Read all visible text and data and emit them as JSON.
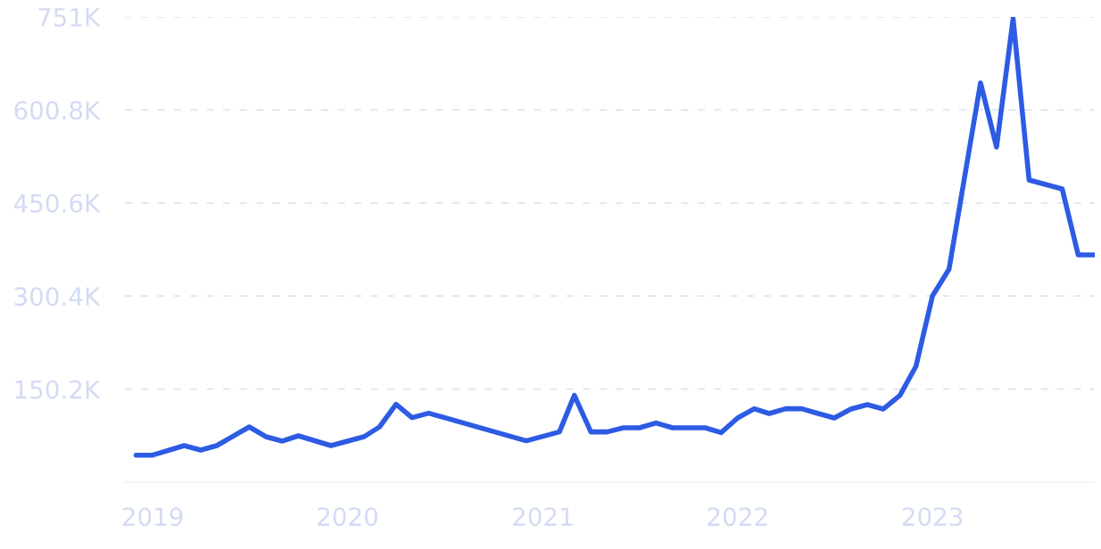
{
  "chart_data": {
    "type": "line",
    "x": [
      "2018-12",
      "2019-01",
      "2019-03",
      "2019-04",
      "2019-05",
      "2019-07",
      "2019-08",
      "2019-09",
      "2019-10",
      "2019-12",
      "2020-02",
      "2020-03",
      "2020-04",
      "2020-05",
      "2020-06",
      "2020-12",
      "2021-02",
      "2021-03",
      "2021-04",
      "2021-05",
      "2021-06",
      "2021-07",
      "2021-08",
      "2021-09",
      "2021-10",
      "2021-11",
      "2021-12",
      "2022-01",
      "2022-02",
      "2022-03",
      "2022-04",
      "2022-05",
      "2022-06",
      "2022-07",
      "2022-08",
      "2022-09",
      "2022-10",
      "2022-11",
      "2022-12",
      "2023-01",
      "2023-02",
      "2023-04",
      "2023-05",
      "2023-06",
      "2023-07",
      "2023-09",
      "2023-10",
      "2023-11"
    ],
    "series": [
      {
        "color": "#2d5be3",
        "values": [
          43600,
          43600,
          59000,
          51800,
          59000,
          89200,
          73400,
          66200,
          74800,
          59000,
          73400,
          89200,
          125700,
          104200,
          111400,
          66800,
          81100,
          140100,
          81100,
          81100,
          87800,
          87800,
          95500,
          87800,
          87800,
          87800,
          80000,
          103600,
          118500,
          110800,
          118500,
          118500,
          110800,
          103600,
          118000,
          125200,
          118000,
          140100,
          187000,
          300700,
          343800,
          644500,
          541000,
          748000,
          487700,
          473300,
          366900,
          366900
        ]
      }
    ],
    "xlim": [
      "2018-11-10",
      "2023-11-01"
    ],
    "xticks": [
      "2019",
      "2020",
      "2021",
      "2022",
      "2023"
    ],
    "ylim": [
      0,
      751000
    ],
    "yticks": [
      {
        "value": 150200,
        "label": "150.2K"
      },
      {
        "value": 300400,
        "label": "300.4K"
      },
      {
        "value": 450600,
        "label": "450.6K"
      },
      {
        "value": 600800,
        "label": "600.8K"
      },
      {
        "value": 751000,
        "label": "751K"
      }
    ],
    "grid": "y",
    "marker": "none",
    "line_style": "solid",
    "legend": false
  }
}
